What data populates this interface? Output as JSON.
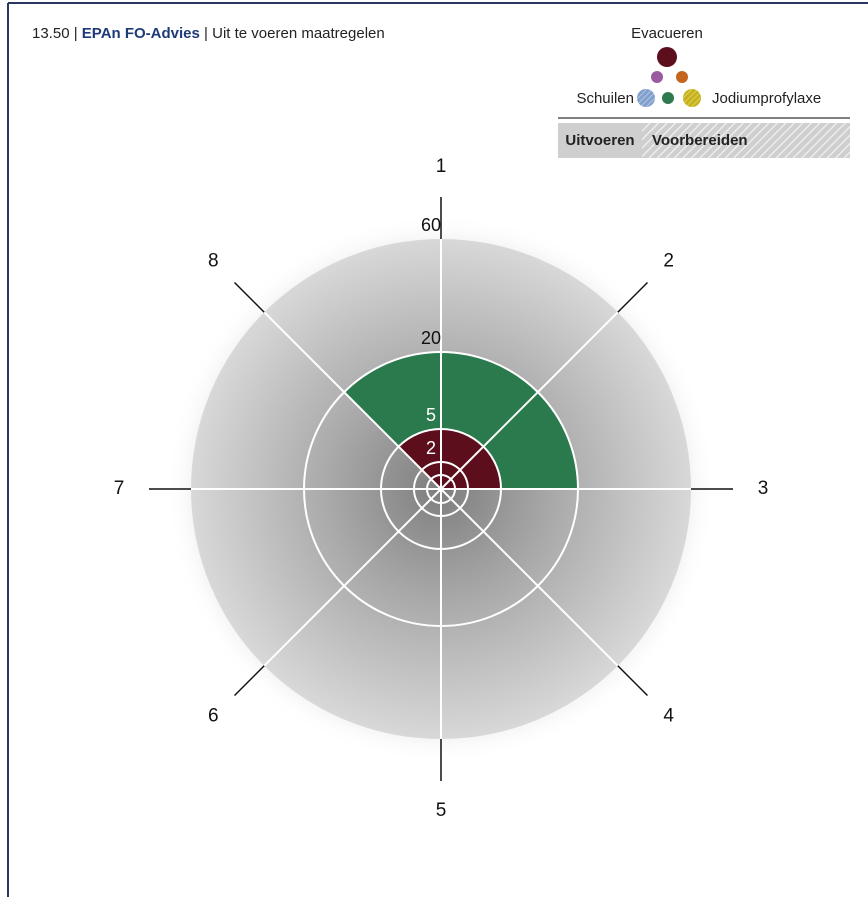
{
  "header": {
    "time": "13.50",
    "separator": "|",
    "source": "EPAn FO-Advies",
    "title": "Uit te voeren maatregelen"
  },
  "legend": {
    "evacuate": "Evacueren",
    "shelter": "Schuilen",
    "iodine": "Jodiumprofylaxe",
    "execute": "Uitvoeren",
    "prepare": "Voorbereiden"
  },
  "diagram": {
    "directions": [
      "1",
      "2",
      "3",
      "4",
      "5",
      "6",
      "7",
      "8"
    ],
    "rings": [
      "2",
      "5",
      "20",
      "60"
    ]
  }
}
